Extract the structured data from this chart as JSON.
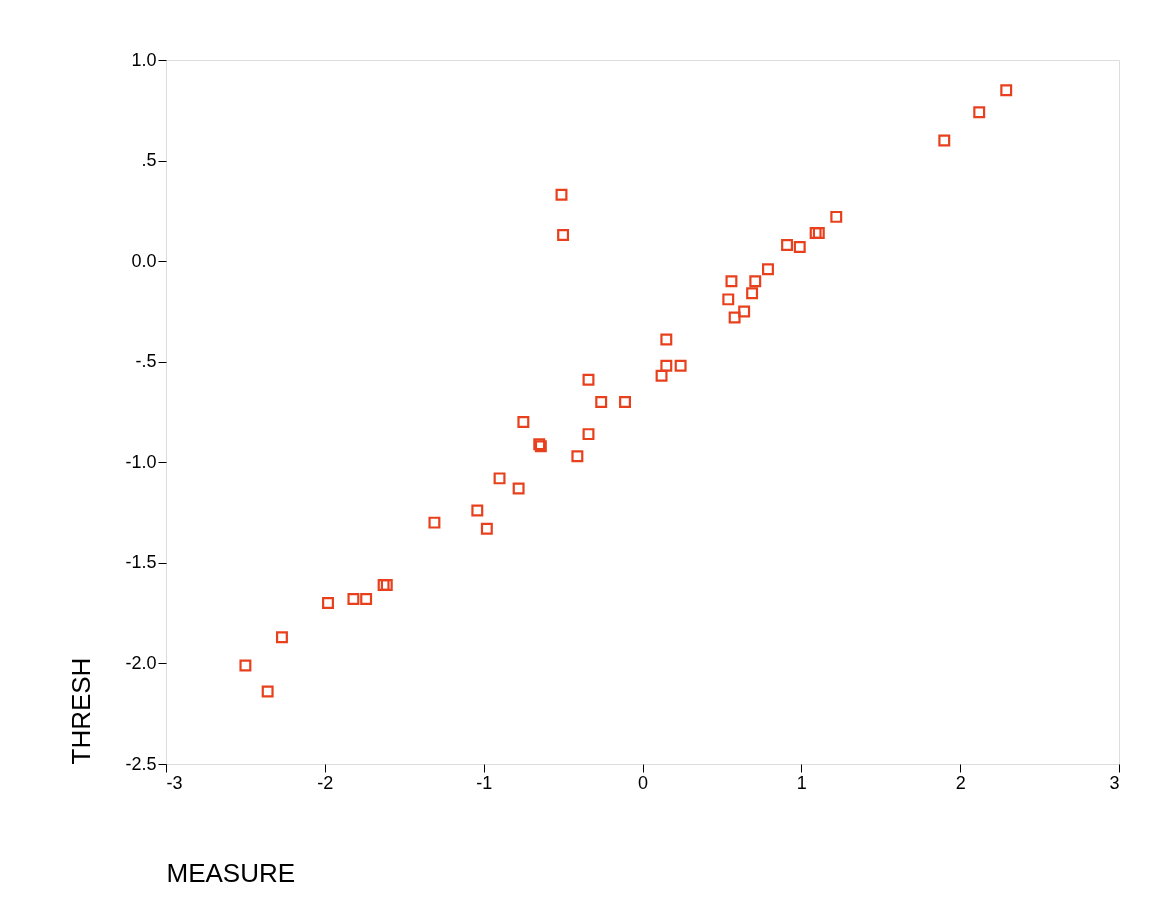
{
  "chart_data": {
    "type": "scatter",
    "xlabel": "MEASURE",
    "ylabel": "THRESH",
    "xlim": [
      -3,
      3
    ],
    "xticks": [
      -3,
      -2,
      -1,
      0,
      1,
      2,
      3
    ],
    "ylim": [
      -2.5,
      1.0
    ],
    "yticks": [
      {
        "value": -2.5,
        "label": "-2.5"
      },
      {
        "value": -2.0,
        "label": "-2.0"
      },
      {
        "value": -1.5,
        "label": "-1.5"
      },
      {
        "value": -1.0,
        "label": "-1.0"
      },
      {
        "value": -0.5,
        "label": "-.5"
      },
      {
        "value": 0,
        "label": "0.0"
      },
      {
        "value": 0.5,
        "label": ".5"
      },
      {
        "value": 1.0,
        "label": "1.0"
      }
    ],
    "grid": false,
    "legend": false,
    "marker": "square",
    "series": [
      {
        "color": "#e8401c",
        "x": [
          -2.5,
          -2.36,
          -2.27,
          -1.98,
          -1.82,
          -1.74,
          -1.63,
          -1.61,
          -1.31,
          -1.04,
          -0.98,
          -0.9,
          -0.78,
          -0.75,
          -0.65,
          -0.64,
          -0.51,
          -0.5,
          -0.41,
          -0.34,
          -0.34,
          -0.26,
          -0.11,
          0.12,
          0.15,
          0.15,
          0.24,
          0.54,
          0.56,
          0.58,
          0.64,
          0.69,
          0.71,
          0.79,
          0.91,
          0.99,
          1.09,
          1.11,
          1.22,
          1.9,
          2.12,
          2.29
        ],
        "values": [
          -2.01,
          -2.14,
          -1.87,
          -1.7,
          -1.68,
          -1.68,
          -1.61,
          -1.61,
          -1.3,
          -1.24,
          -1.33,
          -1.08,
          -1.13,
          -0.8,
          -0.91,
          -0.92,
          0.33,
          0.13,
          -0.97,
          -0.59,
          -0.86,
          -0.7,
          -0.7,
          -0.57,
          -0.52,
          -0.39,
          -0.52,
          -0.19,
          -0.1,
          -0.28,
          -0.25,
          -0.16,
          -0.1,
          -0.04,
          0.08,
          0.07,
          0.14,
          0.14,
          0.22,
          0.6,
          0.74,
          0.85
        ]
      }
    ]
  }
}
